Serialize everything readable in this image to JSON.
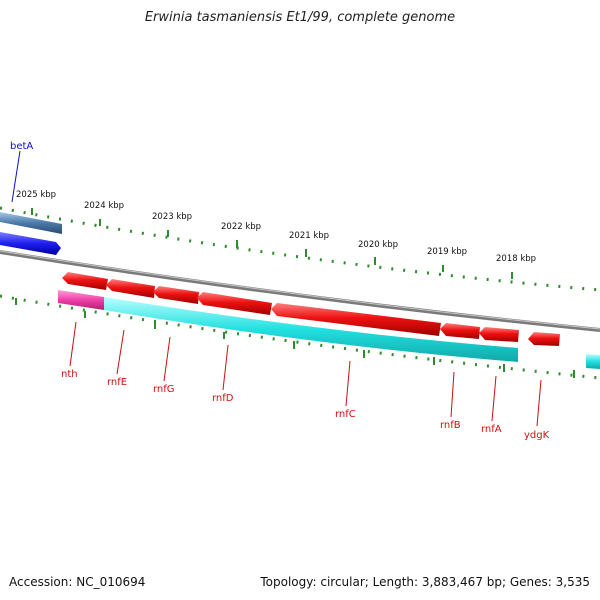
{
  "title": "Erwinia tasmaniensis Et1/99, complete genome",
  "footer": {
    "accession": "Accession: NC_010694",
    "summary": "Topology: circular; Length: 3,883,467 bp; Genes: 3,535"
  },
  "colors": {
    "backbone": "#808080",
    "tick": "#2e8b2e",
    "forward_gene": "#1e1ef0",
    "forward_gene_alt": "#4a7aaa",
    "reverse_gene": "#ee1111",
    "cds": "#22e0e0",
    "cds_alt": "#ee3fa8",
    "label_forward": "#1010c0",
    "label_reverse": "#cc1010"
  },
  "scale_labels": [
    "2025 kbp",
    "2024 kbp",
    "2023 kbp",
    "2022 kbp",
    "2021 kbp",
    "2020 kbp",
    "2019 kbp",
    "2018 kbp"
  ],
  "genes": [
    {
      "name": "betA",
      "strand": "forward"
    },
    {
      "name": "nth",
      "strand": "reverse"
    },
    {
      "name": "rnfE",
      "strand": "reverse"
    },
    {
      "name": "rnfG",
      "strand": "reverse"
    },
    {
      "name": "rnfD",
      "strand": "reverse"
    },
    {
      "name": "rnfC",
      "strand": "reverse"
    },
    {
      "name": "rnfB",
      "strand": "reverse"
    },
    {
      "name": "rnfA",
      "strand": "reverse"
    },
    {
      "name": "ydgK",
      "strand": "reverse"
    }
  ]
}
